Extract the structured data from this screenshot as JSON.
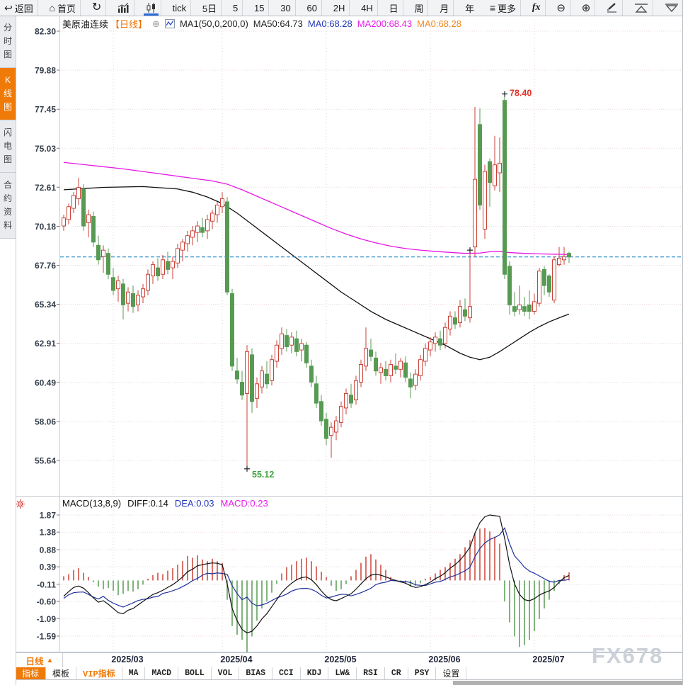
{
  "toolbar_top": {
    "back": "返回",
    "home": "首页",
    "tick_label": "tick",
    "day5_label": "5日",
    "periods": [
      "5",
      "15",
      "30",
      "60",
      "2H",
      "4H",
      "日",
      "周",
      "月",
      "年"
    ],
    "more": "更多",
    "fx": "fx",
    "zoom_out_glyph": "⊖",
    "zoom_in_glyph": "⊕",
    "back_glyph": "↩",
    "home_glyph": "⌂",
    "refresh_glyph": "↻",
    "more_glyph": "≡"
  },
  "sidebar": {
    "items": [
      {
        "label": "分时图",
        "active": false
      },
      {
        "label": "K线图",
        "active": true
      },
      {
        "label": "闪电图",
        "active": false
      },
      {
        "label": "合约资料",
        "active": false
      }
    ]
  },
  "chart_header": {
    "symbol": "美原油连续",
    "period_tag": "【日线】",
    "expand_glyph": "⊕",
    "ma_settings": "MA1(50,0,200,0)",
    "ma50_label": "MA50:64.73",
    "ma0_blue_label": "MA0:68.28",
    "ma200_label": "MA200:68.43",
    "ma0_orange_label": "MA0:68.28"
  },
  "macd_header": {
    "title": "MACD(13,8,9)",
    "diff_label": "DIFF:0.14",
    "dea_label": "DEA:0.03",
    "macd_label": "MACD:0.23"
  },
  "footer": {
    "period_label": "日线",
    "period_arrow": "▲",
    "tabs": [
      {
        "label": "指标",
        "variant": "active"
      },
      {
        "label": "模板",
        "variant": "plain"
      },
      {
        "label": "VIP指标",
        "variant": "vip"
      },
      {
        "label": "MA",
        "variant": "mono"
      },
      {
        "label": "MACD",
        "variant": "mono"
      },
      {
        "label": "BOLL",
        "variant": "mono"
      },
      {
        "label": "VOL",
        "variant": "mono"
      },
      {
        "label": "BIAS",
        "variant": "mono"
      },
      {
        "label": "CCI",
        "variant": "mono"
      },
      {
        "label": "KDJ",
        "variant": "mono"
      },
      {
        "label": "LW&",
        "variant": "mono"
      },
      {
        "label": "RSI",
        "variant": "mono"
      },
      {
        "label": "CR",
        "variant": "mono"
      },
      {
        "label": "PSY",
        "variant": "mono"
      },
      {
        "label": "设置",
        "variant": "plain"
      }
    ]
  },
  "watermark": "FX678",
  "colors": {
    "up": "#cb4238",
    "down": "#579a53",
    "ma50": "#111111",
    "ma200": "#e617e6",
    "dea": "#20319e",
    "current_price_line": "#1e87c8",
    "accent_orange": "#ef7a08"
  },
  "chart_data": {
    "type": "candlestick_with_macd",
    "title": "美原油连续 日线",
    "y_axis_main": [
      82.3,
      79.88,
      77.45,
      75.03,
      72.61,
      70.18,
      67.76,
      65.34,
      62.91,
      60.49,
      58.06,
      55.64
    ],
    "y_axis_macd": [
      1.87,
      1.38,
      0.88,
      0.39,
      -0.11,
      -0.6,
      -1.09,
      -1.59
    ],
    "x_labels": [
      "2025/03",
      "2025/04",
      "2025/05",
      "2025/06",
      "2025/07"
    ],
    "x_month_indices": [
      10,
      32,
      53,
      74,
      95
    ],
    "current_price": 68.28,
    "high_marker": {
      "label": "78.40",
      "value": 78.4,
      "index": 89
    },
    "low_marker": {
      "label": "55.12",
      "value": 55.12,
      "index": 37
    },
    "mid_marker": {
      "value": 68.7,
      "index": 82
    },
    "ma50_last": 64.73,
    "ma200_last": 68.43,
    "candles": [
      [
        70.2,
        70.9,
        69.9,
        70.7
      ],
      [
        70.6,
        71.6,
        70.3,
        71.4
      ],
      [
        71.3,
        72.3,
        71.0,
        72.1
      ],
      [
        71.9,
        73.2,
        71.5,
        72.6
      ],
      [
        72.5,
        72.8,
        69.9,
        70.2
      ],
      [
        70.4,
        71.2,
        69.5,
        70.9
      ],
      [
        70.8,
        71.1,
        68.9,
        69.2
      ],
      [
        69.0,
        69.6,
        67.8,
        68.1
      ],
      [
        68.3,
        69.0,
        67.3,
        68.7
      ],
      [
        68.5,
        68.8,
        66.9,
        67.2
      ],
      [
        67.0,
        67.6,
        65.9,
        66.2
      ],
      [
        66.3,
        67.1,
        65.5,
        66.8
      ],
      [
        66.6,
        66.9,
        64.4,
        65.3
      ],
      [
        65.4,
        66.4,
        64.9,
        66.1
      ],
      [
        66.0,
        66.5,
        64.8,
        65.2
      ],
      [
        65.3,
        66.2,
        64.9,
        65.9
      ],
      [
        65.8,
        66.6,
        65.4,
        66.3
      ],
      [
        66.2,
        67.5,
        65.9,
        67.2
      ],
      [
        67.1,
        68.0,
        66.6,
        67.8
      ],
      [
        67.6,
        68.2,
        66.8,
        67.1
      ],
      [
        67.2,
        68.4,
        66.9,
        68.1
      ],
      [
        68.0,
        68.6,
        67.2,
        67.5
      ],
      [
        67.6,
        68.3,
        66.9,
        68.0
      ],
      [
        67.9,
        69.1,
        67.6,
        68.8
      ],
      [
        68.7,
        69.4,
        68.0,
        69.2
      ],
      [
        69.1,
        69.9,
        68.6,
        69.6
      ],
      [
        69.5,
        70.2,
        69.0,
        69.9
      ],
      [
        69.8,
        70.5,
        69.2,
        70.2
      ],
      [
        70.1,
        70.7,
        69.5,
        69.8
      ],
      [
        69.9,
        70.9,
        69.4,
        70.6
      ],
      [
        70.5,
        71.2,
        70.0,
        71.0
      ],
      [
        70.9,
        71.7,
        70.4,
        71.5
      ],
      [
        71.4,
        72.3,
        71.0,
        71.9
      ],
      [
        71.7,
        72.0,
        65.9,
        66.1
      ],
      [
        66.0,
        66.3,
        61.2,
        61.5
      ],
      [
        61.2,
        62.0,
        60.4,
        60.7
      ],
      [
        60.5,
        61.2,
        59.4,
        59.7
      ],
      [
        59.8,
        62.8,
        55.12,
        62.4
      ],
      [
        62.2,
        62.6,
        58.6,
        59.3
      ],
      [
        59.5,
        60.8,
        58.9,
        60.4
      ],
      [
        60.2,
        61.5,
        59.8,
        61.2
      ],
      [
        61.0,
        61.8,
        60.1,
        60.4
      ],
      [
        60.6,
        62.2,
        60.3,
        61.9
      ],
      [
        61.8,
        63.1,
        61.4,
        62.8
      ],
      [
        62.6,
        63.9,
        62.2,
        63.5
      ],
      [
        63.4,
        63.8,
        62.4,
        62.7
      ],
      [
        62.8,
        63.6,
        62.3,
        63.3
      ],
      [
        63.2,
        63.7,
        62.1,
        62.4
      ],
      [
        62.5,
        63.2,
        61.8,
        62.9
      ],
      [
        62.8,
        63.0,
        61.4,
        61.7
      ],
      [
        61.5,
        61.9,
        60.2,
        60.5
      ],
      [
        60.4,
        60.9,
        58.9,
        59.2
      ],
      [
        59.3,
        59.7,
        57.8,
        58.1
      ],
      [
        58.2,
        58.6,
        56.6,
        57.0
      ],
      [
        57.2,
        58.0,
        55.8,
        57.7
      ],
      [
        57.4,
        58.4,
        56.9,
        58.1
      ],
      [
        58.0,
        59.3,
        57.7,
        59.0
      ],
      [
        58.9,
        60.1,
        58.5,
        59.8
      ],
      [
        59.7,
        60.4,
        58.9,
        59.2
      ],
      [
        59.4,
        60.9,
        59.1,
        60.6
      ],
      [
        60.5,
        61.9,
        60.2,
        61.6
      ],
      [
        61.5,
        63.9,
        61.2,
        62.6
      ],
      [
        62.5,
        63.2,
        61.8,
        62.1
      ],
      [
        62.0,
        62.4,
        60.9,
        61.2
      ],
      [
        61.1,
        61.7,
        60.4,
        61.4
      ],
      [
        61.3,
        61.8,
        60.6,
        60.9
      ],
      [
        60.9,
        61.9,
        60.5,
        61.6
      ],
      [
        61.5,
        62.3,
        61.0,
        61.3
      ],
      [
        61.3,
        62.0,
        60.8,
        61.8
      ],
      [
        61.7,
        62.1,
        60.5,
        60.8
      ],
      [
        60.7,
        61.1,
        59.5,
        60.2
      ],
      [
        60.3,
        61.3,
        60.0,
        61.0
      ],
      [
        60.9,
        62.2,
        60.6,
        61.9
      ],
      [
        61.8,
        62.9,
        61.5,
        62.6
      ],
      [
        62.5,
        63.3,
        62.1,
        63.0
      ],
      [
        62.9,
        63.6,
        62.4,
        63.3
      ],
      [
        63.2,
        63.7,
        62.5,
        62.8
      ],
      [
        62.9,
        64.2,
        62.6,
        63.9
      ],
      [
        63.8,
        64.9,
        63.4,
        64.6
      ],
      [
        64.5,
        64.9,
        63.8,
        64.1
      ],
      [
        64.2,
        65.6,
        63.9,
        65.2
      ],
      [
        65.0,
        65.7,
        64.3,
        64.6
      ],
      [
        64.5,
        68.7,
        64.2,
        65.2
      ],
      [
        68.9,
        77.6,
        68.3,
        73.1
      ],
      [
        76.5,
        77.5,
        71.2,
        71.5
      ],
      [
        70.0,
        74.0,
        69.4,
        73.6
      ],
      [
        74.2,
        74.4,
        71.4,
        72.9
      ],
      [
        72.7,
        75.8,
        72.4,
        74.0
      ],
      [
        73.5,
        75.7,
        72.3,
        74.1
      ],
      [
        78.0,
        78.4,
        66.9,
        67.2
      ],
      [
        67.7,
        68.0,
        64.7,
        65.3
      ],
      [
        65.2,
        66.1,
        64.6,
        64.9
      ],
      [
        65.0,
        66.5,
        64.7,
        65.3
      ],
      [
        65.2,
        65.8,
        64.6,
        64.9
      ],
      [
        65.3,
        66.2,
        64.4,
        64.9
      ],
      [
        64.9,
        66.0,
        64.7,
        65.5
      ],
      [
        65.4,
        67.6,
        65.2,
        67.4
      ],
      [
        67.5,
        67.7,
        65.9,
        66.5
      ],
      [
        67.1,
        67.2,
        65.8,
        66.1
      ],
      [
        65.6,
        68.3,
        65.4,
        68.1
      ],
      [
        67.8,
        68.9,
        67.7,
        68.2
      ],
      [
        68.1,
        68.9,
        67.8,
        68.3
      ],
      [
        68.5,
        68.6,
        67.9,
        68.28
      ]
    ],
    "ma50_points": [
      [
        0,
        72.45
      ],
      [
        8,
        72.6
      ],
      [
        16,
        72.65
      ],
      [
        23,
        72.5
      ],
      [
        26,
        72.3
      ],
      [
        29,
        72.0
      ],
      [
        32,
        71.6
      ],
      [
        35,
        71.0
      ],
      [
        38,
        70.3
      ],
      [
        41,
        69.6
      ],
      [
        44,
        68.9
      ],
      [
        47,
        68.2
      ],
      [
        50,
        67.5
      ],
      [
        53,
        66.8
      ],
      [
        56,
        66.1
      ],
      [
        59,
        65.5
      ],
      [
        62,
        64.9
      ],
      [
        65,
        64.4
      ],
      [
        68,
        64.0
      ],
      [
        71,
        63.6
      ],
      [
        74,
        63.2
      ],
      [
        77,
        62.8
      ],
      [
        80,
        62.3
      ],
      [
        82,
        62.05
      ],
      [
        84,
        61.9
      ],
      [
        86,
        62.05
      ],
      [
        88,
        62.4
      ],
      [
        90,
        62.8
      ],
      [
        92,
        63.2
      ],
      [
        94,
        63.6
      ],
      [
        96,
        63.95
      ],
      [
        98,
        64.25
      ],
      [
        100,
        64.5
      ],
      [
        102,
        64.73
      ]
    ],
    "ma200_points": [
      [
        0,
        74.15
      ],
      [
        6,
        73.95
      ],
      [
        12,
        73.75
      ],
      [
        18,
        73.5
      ],
      [
        24,
        73.25
      ],
      [
        30,
        73.0
      ],
      [
        33,
        72.8
      ],
      [
        36,
        72.45
      ],
      [
        39,
        72.05
      ],
      [
        42,
        71.65
      ],
      [
        45,
        71.25
      ],
      [
        48,
        70.85
      ],
      [
        51,
        70.45
      ],
      [
        54,
        70.05
      ],
      [
        57,
        69.7
      ],
      [
        60,
        69.4
      ],
      [
        63,
        69.15
      ],
      [
        66,
        68.95
      ],
      [
        69,
        68.8
      ],
      [
        72,
        68.7
      ],
      [
        75,
        68.62
      ],
      [
        78,
        68.56
      ],
      [
        81,
        68.5
      ],
      [
        84,
        68.52
      ],
      [
        86,
        68.6
      ],
      [
        88,
        68.62
      ],
      [
        90,
        68.55
      ],
      [
        93,
        68.5
      ],
      [
        96,
        68.47
      ],
      [
        99,
        68.45
      ],
      [
        102,
        68.43
      ]
    ],
    "macd": {
      "diff_last": 0.14,
      "dea_last": 0.03,
      "macd_last": 0.23,
      "hist": [
        0.12,
        0.18,
        0.3,
        0.35,
        0.22,
        0.1,
        -0.05,
        -0.18,
        -0.25,
        -0.22,
        -0.3,
        -0.42,
        -0.38,
        -0.3,
        -0.32,
        -0.25,
        -0.12,
        0.05,
        0.15,
        0.22,
        0.18,
        0.28,
        0.35,
        0.45,
        0.55,
        0.7,
        0.65,
        0.72,
        0.6,
        0.55,
        0.62,
        0.55,
        0.5,
        -0.55,
        -1.3,
        -1.55,
        -1.7,
        -2.05,
        -1.6,
        -1.15,
        -0.8,
        -0.6,
        -0.35,
        -0.1,
        0.2,
        0.38,
        0.45,
        0.55,
        0.62,
        0.65,
        0.55,
        0.4,
        0.25,
        0.1,
        -0.15,
        -0.3,
        -0.25,
        -0.1,
        0.12,
        0.3,
        0.5,
        0.68,
        0.75,
        0.6,
        0.45,
        0.3,
        0.1,
        0.02,
        -0.03,
        -0.1,
        -0.18,
        -0.15,
        -0.08,
        0.05,
        0.1,
        0.2,
        0.3,
        0.38,
        0.5,
        0.62,
        0.75,
        0.95,
        1.15,
        1.35,
        1.48,
        1.5,
        1.4,
        1.25,
        1.05,
        -0.6,
        -1.2,
        -1.6,
        -1.9,
        -1.85,
        -1.7,
        -1.45,
        -1.1,
        -0.8,
        -0.55,
        -0.3,
        -0.1,
        0.15,
        0.23
      ],
      "diff": [
        -0.45,
        -0.32,
        -0.2,
        -0.16,
        -0.22,
        -0.35,
        -0.5,
        -0.62,
        -0.58,
        -0.68,
        -0.8,
        -0.92,
        -0.95,
        -0.85,
        -0.8,
        -0.7,
        -0.6,
        -0.5,
        -0.4,
        -0.35,
        -0.28,
        -0.2,
        -0.12,
        -0.02,
        0.1,
        0.25,
        0.32,
        0.42,
        0.45,
        0.48,
        0.5,
        0.49,
        0.45,
        -0.1,
        -0.8,
        -1.15,
        -1.4,
        -1.5,
        -1.45,
        -1.3,
        -1.1,
        -0.95,
        -0.75,
        -0.55,
        -0.35,
        -0.2,
        -0.08,
        0.02,
        0.08,
        0.1,
        0.02,
        -0.12,
        -0.3,
        -0.45,
        -0.55,
        -0.58,
        -0.52,
        -0.45,
        -0.38,
        -0.25,
        -0.1,
        0.05,
        0.15,
        0.18,
        0.15,
        0.1,
        0.05,
        0.0,
        -0.04,
        -0.08,
        -0.15,
        -0.2,
        -0.18,
        -0.12,
        -0.05,
        0.05,
        0.12,
        0.22,
        0.35,
        0.45,
        0.58,
        0.75,
        0.95,
        1.35,
        1.65,
        1.82,
        1.87,
        1.85,
        1.83,
        1.2,
        0.45,
        -0.1,
        -0.4,
        -0.55,
        -0.58,
        -0.52,
        -0.42,
        -0.35,
        -0.3,
        -0.2,
        -0.05,
        0.08,
        0.14
      ]
    }
  }
}
